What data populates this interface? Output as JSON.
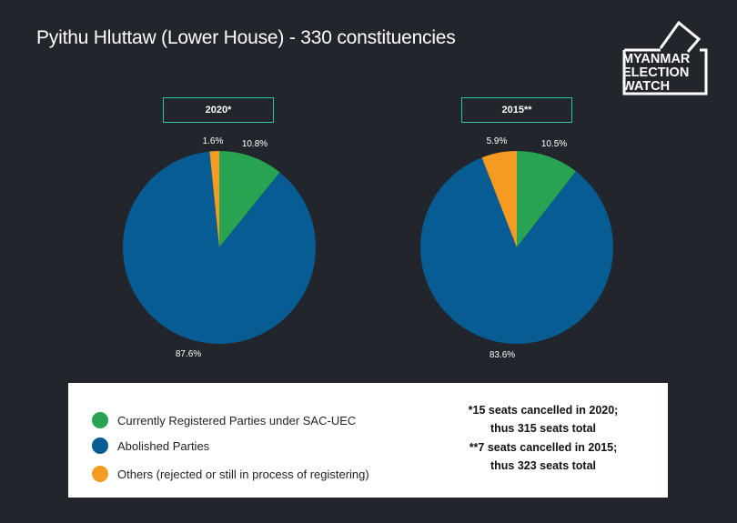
{
  "title": "Pyithu Hluttaw (Lower House) - 330 constituencies",
  "logo": {
    "line1": "MYANMAR",
    "line2": "ELECTION",
    "line3": "WATCH"
  },
  "colors": {
    "registered": "#27a352",
    "abolished": "#065c93",
    "others": "#f59a23",
    "box_border": "#2ec3a5"
  },
  "chart_data": [
    {
      "type": "pie",
      "title": "2020*",
      "slices": [
        {
          "label": "Currently Registered Parties under SAC-UEC",
          "value": 10.8,
          "display": "10.8%",
          "color": "#27a352"
        },
        {
          "label": "Abolished Parties",
          "value": 87.6,
          "display": "87.6%",
          "color": "#065c93"
        },
        {
          "label": "Others (rejected or still in process of registering)",
          "value": 1.6,
          "display": "1.6%",
          "color": "#f59a23"
        }
      ]
    },
    {
      "type": "pie",
      "title": "2015**",
      "slices": [
        {
          "label": "Currently Registered Parties under SAC-UEC",
          "value": 10.5,
          "display": "10.5%",
          "color": "#27a352"
        },
        {
          "label": "Abolished Parties",
          "value": 83.6,
          "display": "83.6%",
          "color": "#065c93"
        },
        {
          "label": "Others (rejected or still in process of registering)",
          "value": 5.9,
          "display": "5.9%",
          "color": "#f59a23"
        }
      ]
    }
  ],
  "legend": {
    "items": [
      {
        "label": "Currently Registered Parties under SAC-UEC",
        "color": "#27a352"
      },
      {
        "label": "Abolished Parties",
        "color": "#065c93"
      },
      {
        "label": "Others (rejected or still in process of registering)",
        "color": "#f59a23"
      }
    ],
    "notes": {
      "n2020_line1": "*15 seats cancelled in 2020;",
      "n2020_line2": "thus 315 seats total",
      "n2015_line1": "**7 seats cancelled in 2015;",
      "n2015_line2": "thus 323 seats total"
    }
  }
}
